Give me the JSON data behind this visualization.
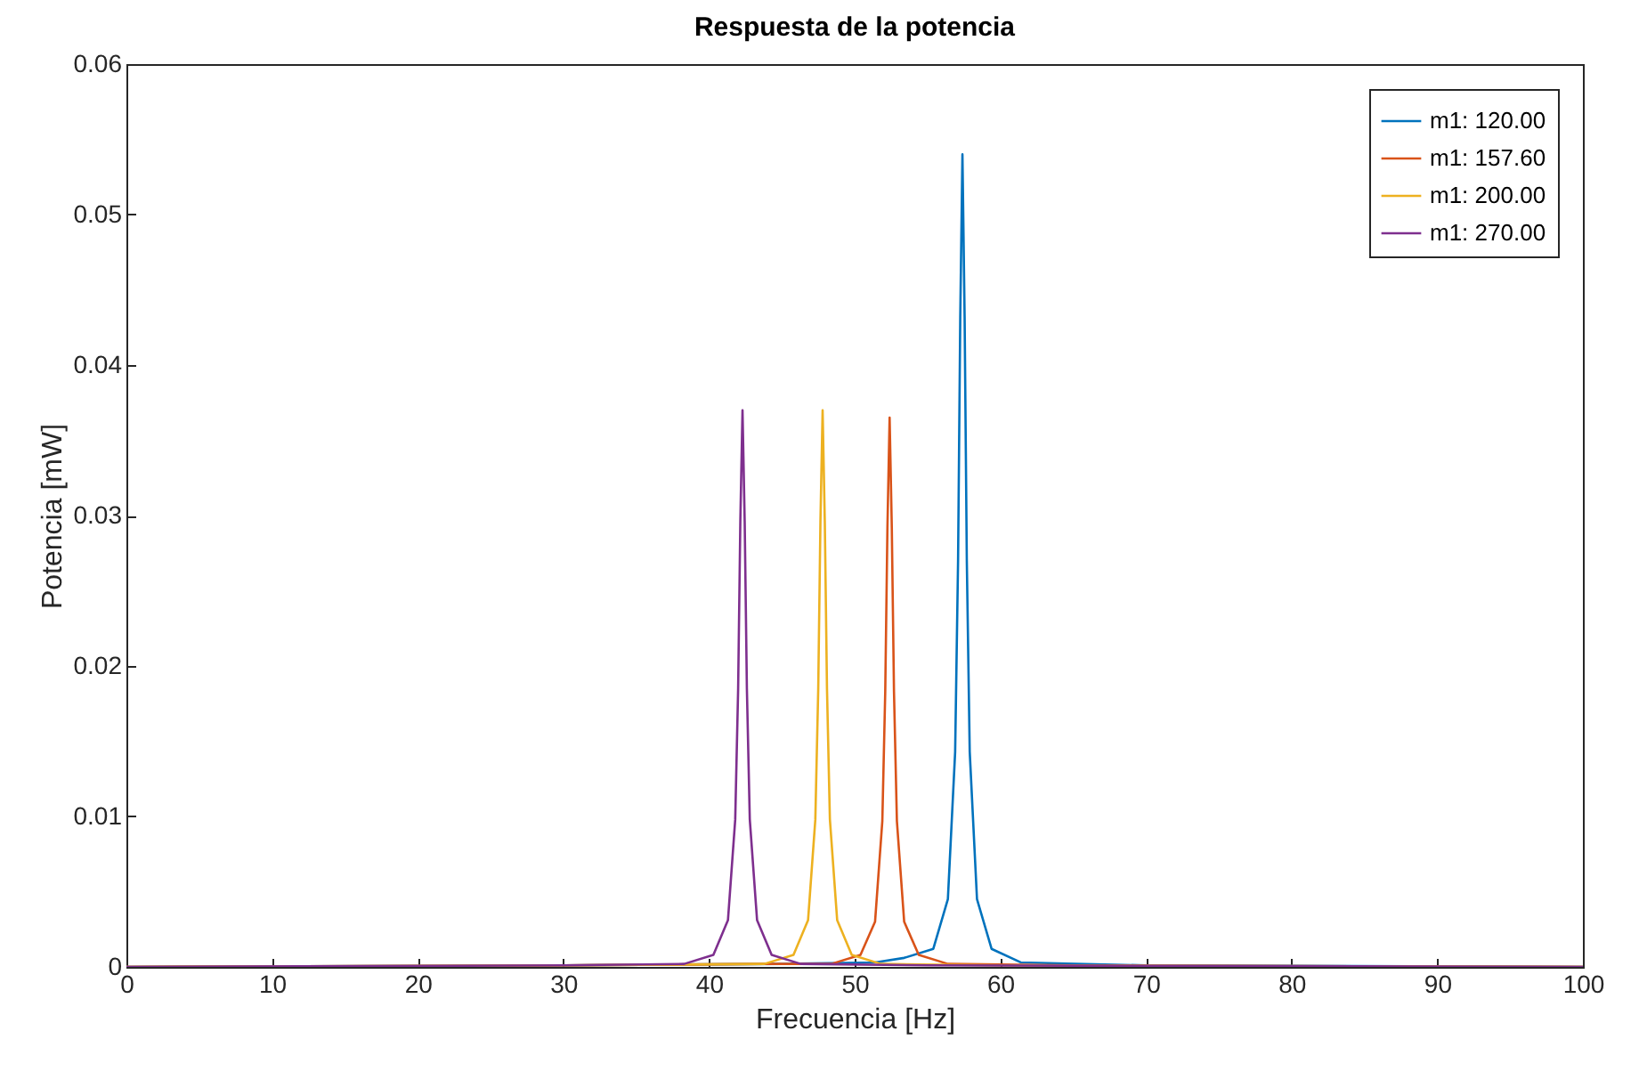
{
  "chart_data": {
    "type": "line",
    "title": "Respuesta de la potencia",
    "xlabel": "Frecuencia [Hz]",
    "ylabel": "Potencia [mW]",
    "xlim": [
      0,
      100
    ],
    "xticks": [
      0,
      10,
      20,
      30,
      40,
      50,
      60,
      70,
      80,
      90,
      100
    ],
    "ylim": [
      0,
      0.06
    ],
    "yticks": [
      0,
      0.01,
      0.02,
      0.03,
      0.04,
      0.05,
      0.06
    ],
    "grid": false,
    "legend": "top right",
    "line_style": "solid",
    "marker": "none",
    "series": [
      {
        "name": "m1: 120.00",
        "color": "#0072bd",
        "x": [
          0,
          30,
          45,
          51.4,
          53.4,
          55.4,
          56.4,
          56.9,
          57.1,
          57.25,
          57.4,
          57.55,
          57.7,
          57.9,
          58.4,
          59.4,
          61.4,
          70,
          100
        ],
        "values": [
          0,
          0.0001,
          0.0002,
          0.0003,
          0.0006,
          0.0012,
          0.0045,
          0.0143,
          0.027,
          0.0432,
          0.054,
          0.0432,
          0.027,
          0.0143,
          0.0045,
          0.0012,
          0.0003,
          0.0001,
          0
        ]
      },
      {
        "name": "m1: 157.60",
        "color": "#d95319",
        "x": [
          0,
          30,
          44,
          48.4,
          50.4,
          51.4,
          51.9,
          52.1,
          52.25,
          52.4,
          52.55,
          52.7,
          52.9,
          53.4,
          54.4,
          56.4,
          65,
          100
        ],
        "values": [
          0,
          0.0001,
          0.0002,
          0.0002,
          0.0008,
          0.003,
          0.0097,
          0.0183,
          0.0292,
          0.0365,
          0.0292,
          0.0183,
          0.0097,
          0.003,
          0.0008,
          0.0002,
          0.0001,
          0
        ]
      },
      {
        "name": "m1: 200.00",
        "color": "#edb120",
        "x": [
          0,
          30,
          43.8,
          45.8,
          46.8,
          47.3,
          47.5,
          47.65,
          47.8,
          47.95,
          48.1,
          48.3,
          48.8,
          49.8,
          51.8,
          60,
          100
        ],
        "values": [
          0,
          0.0001,
          0.0002,
          0.0008,
          0.0031,
          0.0098,
          0.0185,
          0.0296,
          0.037,
          0.0296,
          0.0185,
          0.0098,
          0.0031,
          0.0008,
          0.0002,
          0.0001,
          0
        ]
      },
      {
        "name": "m1: 270.00",
        "color": "#7e2f8e",
        "x": [
          0,
          30,
          38.3,
          40.3,
          41.3,
          41.8,
          42,
          42.15,
          42.3,
          42.45,
          42.6,
          42.8,
          43.3,
          44.3,
          46.3,
          55,
          100
        ],
        "values": [
          0,
          0.0001,
          0.0002,
          0.0008,
          0.0031,
          0.0098,
          0.0185,
          0.0296,
          0.037,
          0.0296,
          0.0185,
          0.0098,
          0.0031,
          0.0008,
          0.0002,
          0.0001,
          0
        ]
      }
    ]
  }
}
